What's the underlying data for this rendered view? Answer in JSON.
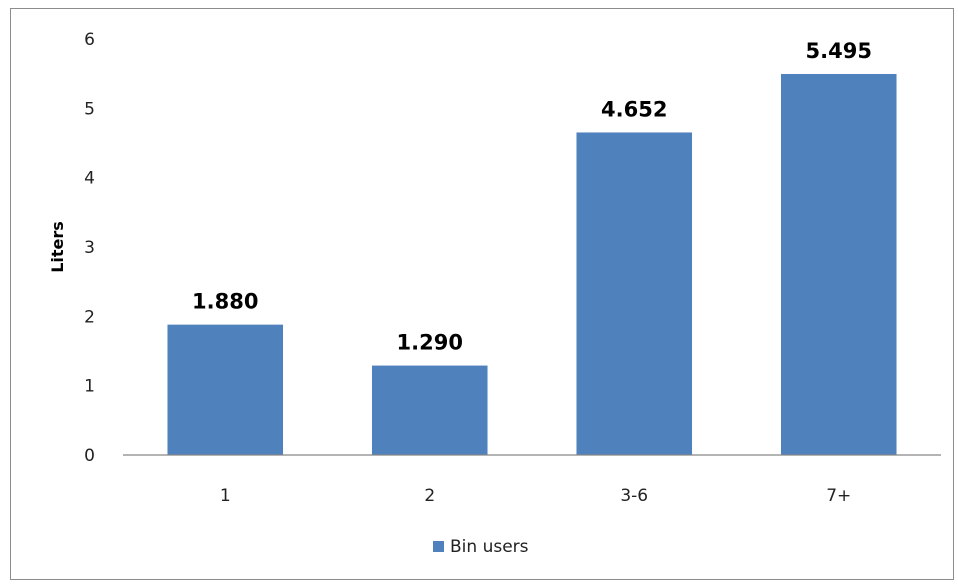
{
  "chart_data": {
    "type": "bar",
    "categories": [
      "1",
      "2",
      "3-6",
      "7+"
    ],
    "series": [
      {
        "name": "Bin users",
        "values": [
          1.88,
          1.29,
          4.652,
          5.495
        ],
        "labels": [
          "1.880",
          "1.290",
          "4.652",
          "5.495"
        ],
        "color": "#4f81bd"
      }
    ],
    "ylabel": "Liters",
    "xlabel": "",
    "ylim": [
      0,
      6
    ],
    "yticks": [
      "0",
      "1",
      "2",
      "3",
      "4",
      "5",
      "6"
    ],
    "grid": false,
    "legend_position": "bottom"
  }
}
